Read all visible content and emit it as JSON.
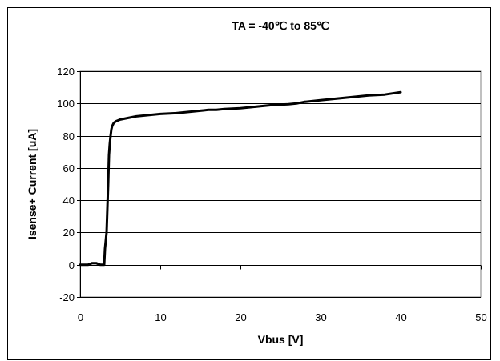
{
  "chart_data": {
    "type": "line",
    "title": "TA = -40℃ to 85℃",
    "xlabel": "Vbus [V]",
    "ylabel": "Isense+ Current [uA]",
    "xlim": [
      0,
      50
    ],
    "ylim": [
      -20,
      120
    ],
    "xticks": [
      0,
      10,
      20,
      30,
      40,
      50
    ],
    "yticks": [
      -20,
      0,
      20,
      40,
      60,
      80,
      100,
      120
    ],
    "grid": "horizontal",
    "legend": "none",
    "line_color": "#000000",
    "series": [
      {
        "x": [
          0,
          1,
          1.5,
          2,
          2.5,
          3,
          3.1,
          3.3,
          3.5,
          3.6,
          3.7,
          3.8,
          3.9,
          4.0,
          4.2,
          4.5,
          5,
          6,
          7,
          8,
          10,
          12,
          13,
          14,
          15,
          16,
          17,
          18,
          20,
          22,
          24,
          26,
          27,
          28,
          30,
          32,
          34,
          36,
          38,
          40
        ],
        "y": [
          0,
          0,
          1,
          1,
          0,
          0,
          10,
          20,
          50,
          68,
          75,
          80,
          84,
          86,
          88,
          89,
          90,
          91,
          92,
          92.5,
          93.5,
          94,
          94.5,
          95,
          95.5,
          96,
          96,
          96.5,
          97,
          98,
          99,
          99.5,
          100,
          101,
          102,
          103,
          104,
          105,
          105.5,
          107
        ]
      }
    ]
  }
}
